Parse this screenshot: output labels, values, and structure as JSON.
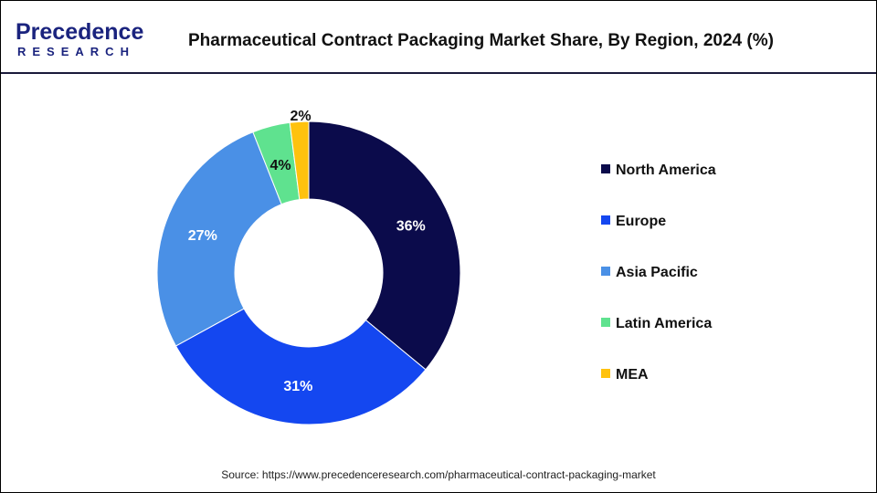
{
  "logo": {
    "line1": "Precedence",
    "line2": "RESEARCH"
  },
  "title": "Pharmaceutical Contract Packaging Market Share, By Region, 2024 (%)",
  "source": "Source: https://www.precedenceresearch.com/pharmaceutical-contract-packaging-market",
  "chart_data": {
    "type": "pie",
    "donut": true,
    "title": "Pharmaceutical Contract Packaging Market Share, By Region, 2024 (%)",
    "legend_position": "right",
    "categories": [
      "North America",
      "Europe",
      "Asia Pacific",
      "Latin America",
      "MEA"
    ],
    "values": [
      36,
      31,
      27,
      4,
      2
    ],
    "labels": [
      "36%",
      "31%",
      "27%",
      "4%",
      "2%"
    ],
    "colors": [
      "#0b0b4b",
      "#1447f0",
      "#4a90e6",
      "#5fe28f",
      "#ffc20e"
    ]
  }
}
